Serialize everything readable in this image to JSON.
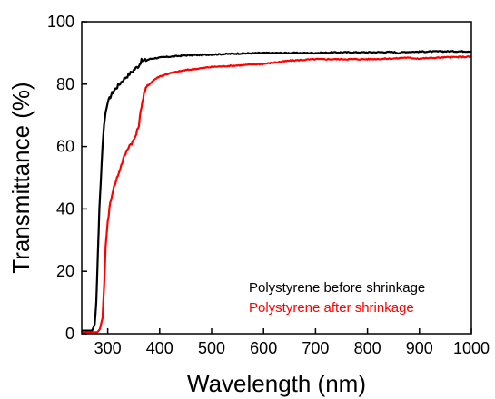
{
  "chart_data": {
    "type": "line",
    "xlabel": "Wavelength (nm)",
    "ylabel": "Transmittance (%)",
    "xlim": [
      250,
      1000
    ],
    "ylim": [
      0,
      100
    ],
    "xticks": [
      300,
      400,
      500,
      600,
      700,
      800,
      900,
      1000
    ],
    "yticks": [
      0,
      20,
      40,
      60,
      80,
      100
    ],
    "grid": false,
    "legend_placement": "bottom-right",
    "series": [
      {
        "name": "Polystyrene before shrinkage",
        "color": "#000000",
        "x": [
          250,
          270,
          275,
          278,
          281,
          284,
          287,
          290,
          293,
          296,
          300,
          305,
          310,
          315,
          320,
          330,
          340,
          350,
          360,
          365,
          370,
          380,
          390,
          400,
          420,
          450,
          500,
          550,
          600,
          650,
          700,
          750,
          800,
          850,
          860,
          870,
          900,
          950,
          1000
        ],
        "y": [
          1,
          1,
          3,
          10,
          25,
          40,
          50,
          60,
          67,
          71,
          74,
          76,
          77.5,
          78.5,
          79.5,
          81.5,
          83,
          84.5,
          86,
          87.5,
          87.5,
          88,
          88.3,
          88.5,
          88.8,
          89.2,
          89.5,
          89.8,
          90,
          90,
          90,
          90.2,
          90.2,
          90.3,
          90,
          90.3,
          90.4,
          90.5,
          90.5
        ]
      },
      {
        "name": "Polystyrene after shrinkage",
        "color": "#ff0000",
        "x": [
          250,
          280,
          285,
          290,
          293,
          296,
          300,
          305,
          310,
          320,
          330,
          340,
          350,
          355,
          360,
          365,
          370,
          375,
          380,
          390,
          400,
          420,
          450,
          500,
          550,
          600,
          650,
          700,
          750,
          800,
          850,
          860,
          870,
          900,
          950,
          1000
        ],
        "y": [
          0.5,
          0.5,
          1.5,
          5,
          15,
          28,
          36,
          42,
          46,
          51,
          56,
          60,
          62,
          64,
          67,
          73,
          77,
          79,
          80,
          81.5,
          82.5,
          83.5,
          84.5,
          85.5,
          86,
          86.5,
          87.5,
          88,
          88,
          88,
          88.2,
          88.3,
          88.5,
          88.2,
          88.6,
          88.8
        ]
      }
    ]
  }
}
